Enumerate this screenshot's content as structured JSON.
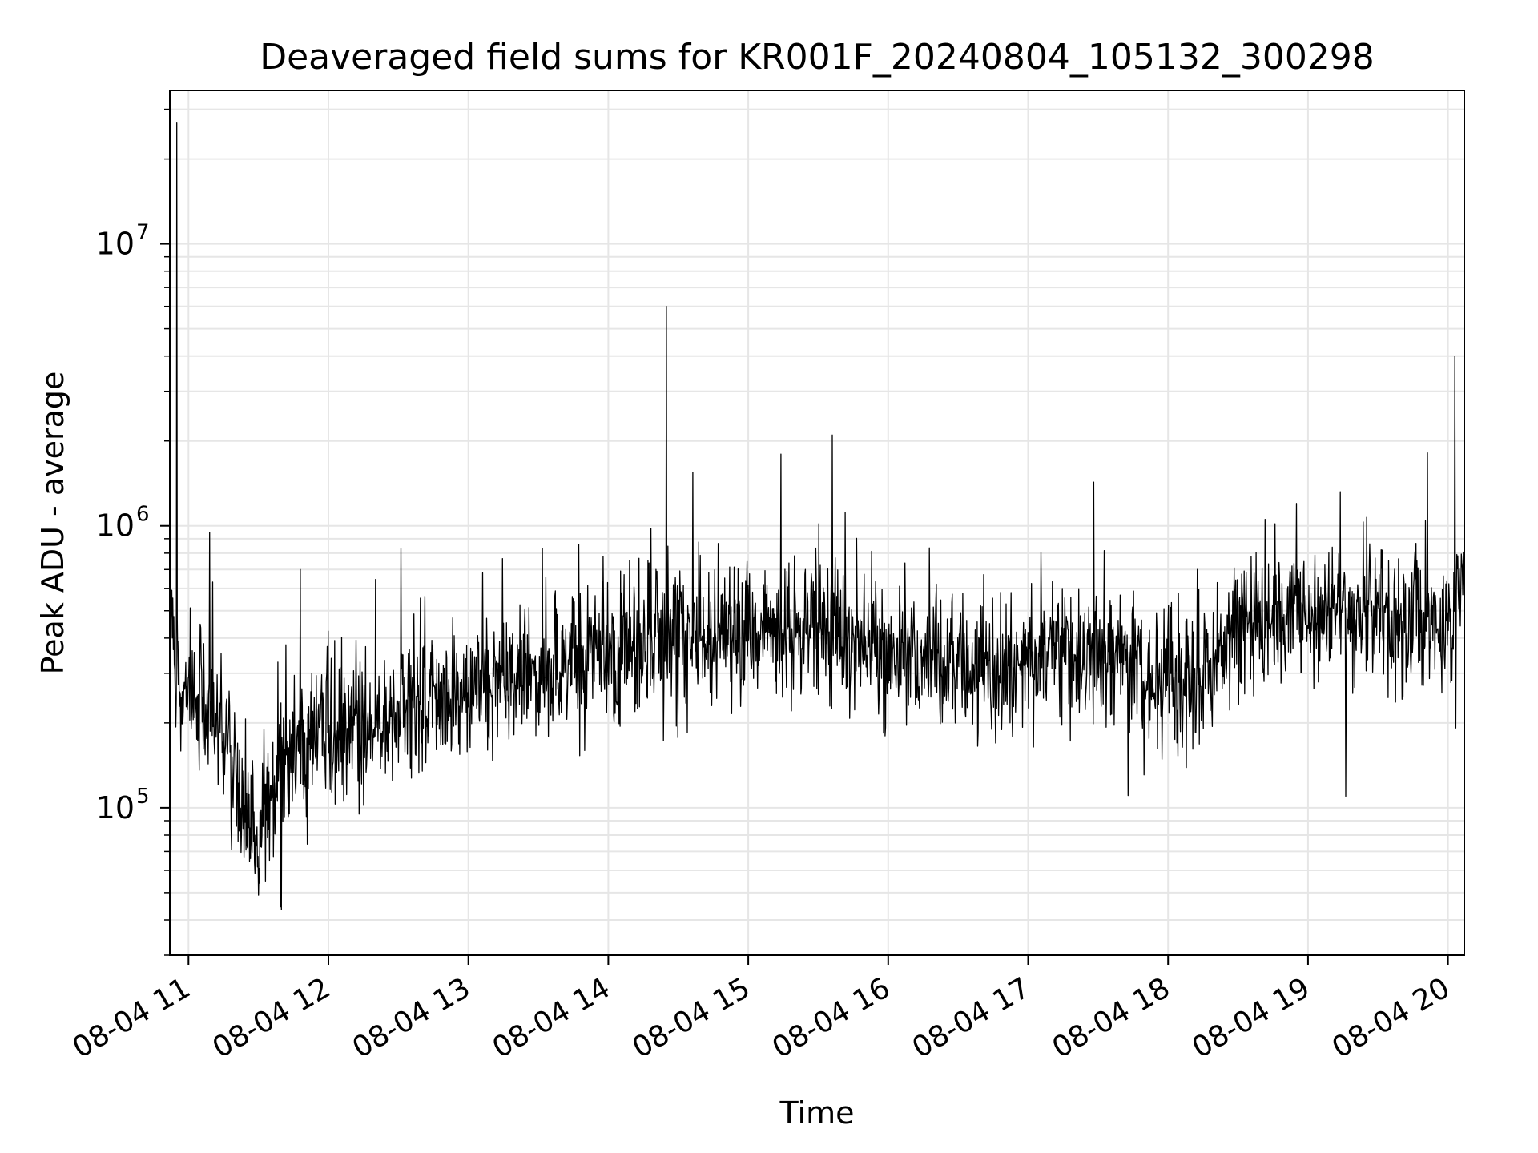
{
  "chart_data": {
    "type": "line",
    "title": "Deaveraged field sums for KR001F_20240804_105132_300298",
    "xlabel": "Time",
    "ylabel": "Peak ADU - average",
    "yscale": "log",
    "ylim": [
      30000,
      35000000
    ],
    "xlim": [
      "2024-08-04 10:52",
      "2024-08-04 20:07"
    ],
    "grid": true,
    "x_tick_labels": [
      "08-04 11",
      "08-04 12",
      "08-04 13",
      "08-04 14",
      "08-04 15",
      "08-04 16",
      "08-04 17",
      "08-04 18",
      "08-04 19",
      "08-04 20"
    ],
    "y_tick_labels": [
      {
        "base": "10",
        "exp": "5"
      },
      {
        "base": "10",
        "exp": "6"
      },
      {
        "base": "10",
        "exp": "7"
      }
    ],
    "series": [
      {
        "color": "#000000",
        "x": [
          "2024-08-04 10:52",
          "2024-08-04 10:55",
          "2024-08-04 11:00",
          "2024-08-04 11:10",
          "2024-08-04 11:20",
          "2024-08-04 11:30",
          "2024-08-04 11:40",
          "2024-08-04 11:50",
          "2024-08-04 12:00",
          "2024-08-04 12:15",
          "2024-08-04 12:30",
          "2024-08-04 12:45",
          "2024-08-04 13:00",
          "2024-08-04 13:15",
          "2024-08-04 13:30",
          "2024-08-04 13:45",
          "2024-08-04 14:00",
          "2024-08-04 14:15",
          "2024-08-04 14:30",
          "2024-08-04 14:45",
          "2024-08-04 15:00",
          "2024-08-04 15:15",
          "2024-08-04 15:30",
          "2024-08-04 15:45",
          "2024-08-04 16:00",
          "2024-08-04 16:15",
          "2024-08-04 16:30",
          "2024-08-04 16:45",
          "2024-08-04 17:00",
          "2024-08-04 17:15",
          "2024-08-04 17:30",
          "2024-08-04 17:45",
          "2024-08-04 18:00",
          "2024-08-04 18:15",
          "2024-08-04 18:30",
          "2024-08-04 18:45",
          "2024-08-04 19:00",
          "2024-08-04 19:15",
          "2024-08-04 19:30",
          "2024-08-04 19:45",
          "2024-08-04 20:00",
          "2024-08-04 20:07"
        ],
        "y": [
          500000,
          300000,
          250000,
          220000,
          130000,
          80000,
          150000,
          180000,
          170000,
          200000,
          220000,
          240000,
          260000,
          280000,
          300000,
          320000,
          340000,
          380000,
          450000,
          420000,
          420000,
          450000,
          430000,
          400000,
          380000,
          350000,
          320000,
          300000,
          330000,
          350000,
          340000,
          330000,
          250000,
          290000,
          450000,
          480000,
          520000,
          480000,
          500000,
          450000,
          420000,
          700000
        ]
      }
    ],
    "spikes": [
      {
        "x": "2024-08-04 10:55",
        "y": 27000000
      },
      {
        "x": "2024-08-04 11:09",
        "y": 950000
      },
      {
        "x": "2024-08-04 11:48",
        "y": 700000
      },
      {
        "x": "2024-08-04 12:31",
        "y": 830000
      },
      {
        "x": "2024-08-04 14:25",
        "y": 6000000
      },
      {
        "x": "2024-08-04 15:36",
        "y": 2100000
      },
      {
        "x": "2024-08-04 18:55",
        "y": 1200000
      },
      {
        "x": "2024-08-04 20:03",
        "y": 4000000
      }
    ]
  }
}
